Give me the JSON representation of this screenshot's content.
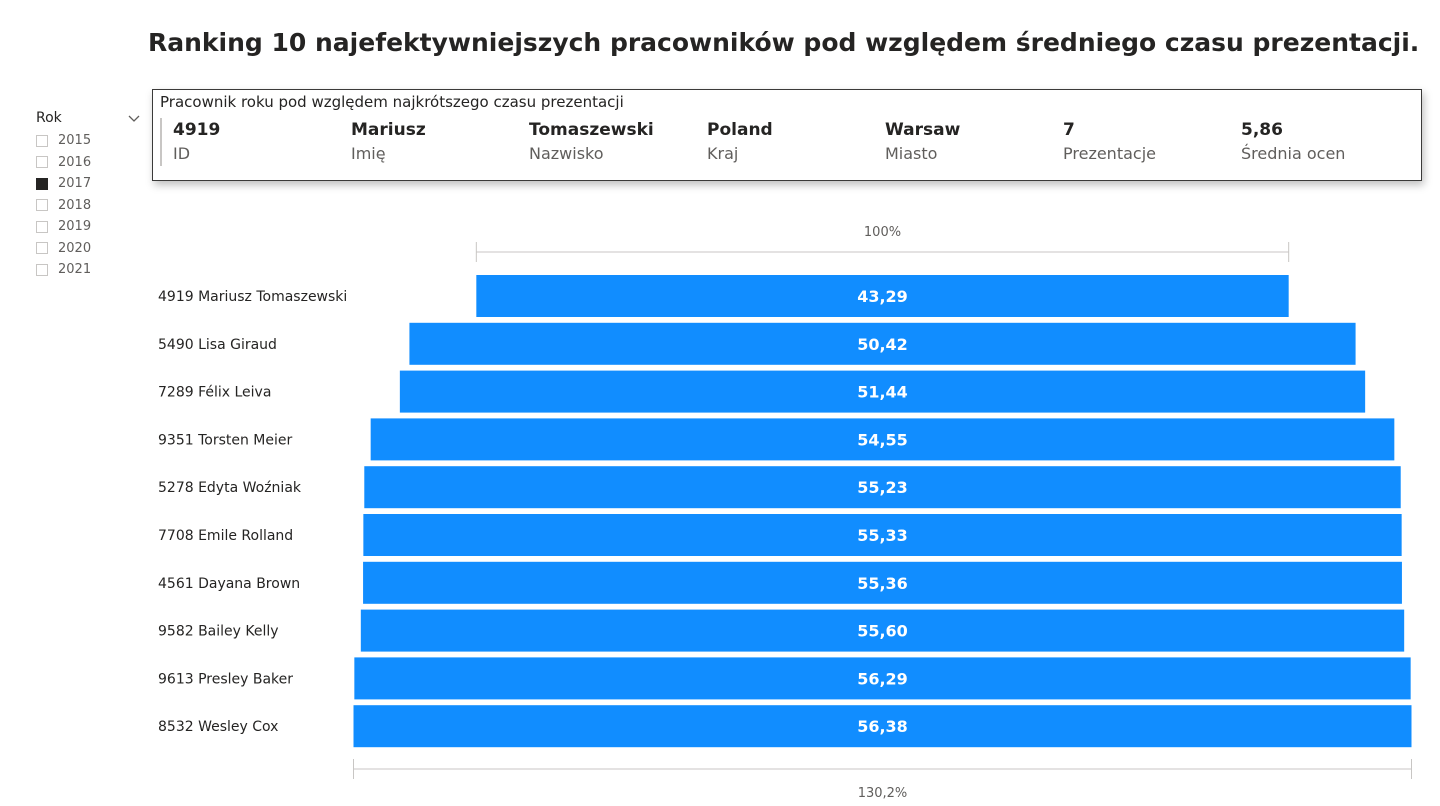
{
  "page": {
    "title": "Ranking 10 najefektywniejszych pracowników pod względem średniego czasu prezentacji."
  },
  "slicer": {
    "title": "Rok",
    "chevron_icon": "chevron-down-icon",
    "items": [
      {
        "label": "2015",
        "checked": false
      },
      {
        "label": "2016",
        "checked": false
      },
      {
        "label": "2017",
        "checked": true
      },
      {
        "label": "2018",
        "checked": false
      },
      {
        "label": "2019",
        "checked": false
      },
      {
        "label": "2020",
        "checked": false
      },
      {
        "label": "2021",
        "checked": false
      }
    ]
  },
  "card": {
    "title": "Pracownik roku pod względem najkrótszego czasu prezentacji",
    "fields": [
      {
        "value": "4919",
        "label": "ID"
      },
      {
        "value": "Mariusz",
        "label": "Imię"
      },
      {
        "value": "Tomaszewski",
        "label": "Nazwisko"
      },
      {
        "value": "Poland",
        "label": "Kraj"
      },
      {
        "value": "Warsaw",
        "label": "Miasto"
      },
      {
        "value": "7",
        "label": "Prezentacje"
      },
      {
        "value": "5,86",
        "label": "Średnia ocen"
      }
    ]
  },
  "colors": {
    "bar": "#118dff",
    "bar_label": "#ffffff",
    "axis_line": "#c8c6c4"
  },
  "chart_data": {
    "type": "funnel",
    "categories": [
      "4919 Mariusz Tomaszewski",
      "5490 Lisa Giraud",
      "7289 Félix Leiva",
      "9351 Torsten Meier",
      "5278 Edyta Woźniak",
      "7708 Emile Rolland",
      "4561 Dayana Brown",
      "9582 Bailey Kelly",
      "9613 Presley Baker",
      "8532 Wesley Cox"
    ],
    "values": [
      43.29,
      50.42,
      51.44,
      54.55,
      55.23,
      55.33,
      55.36,
      55.6,
      56.29,
      56.38
    ],
    "value_labels": [
      "43,29",
      "50,42",
      "51,44",
      "54,55",
      "55,23",
      "55,33",
      "55,36",
      "55,60",
      "56,29",
      "56,38"
    ],
    "top_percent_label": "100%",
    "bottom_percent_label": "130,2%"
  }
}
